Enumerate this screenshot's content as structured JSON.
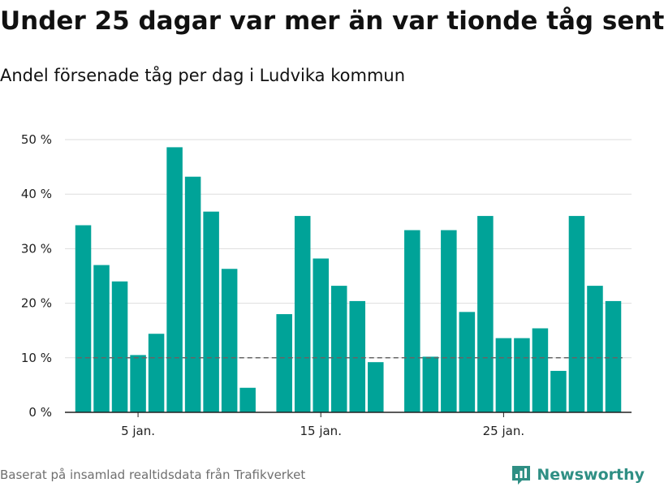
{
  "header": {
    "title": "Under 25 dagar var mer än var tionde tåg sent",
    "subtitle": "Andel försenade tåg per dag i Ludvika kommun"
  },
  "footer": {
    "source": "Baserat på insamlad realtidsdata från Trafikverket",
    "brand": "Newsworthy"
  },
  "colors": {
    "bar": "#00a398",
    "reference_line": "#666666",
    "grid": "#dddddd",
    "brand": "#2f8f84"
  },
  "chart_data": {
    "type": "bar",
    "title": "Under 25 dagar var mer än var tionde tåg sent",
    "subtitle": "Andel försenade tåg per dag i Ludvika kommun",
    "xlabel": "",
    "ylabel": "",
    "x_unit": "day of January",
    "x": [
      2,
      3,
      4,
      5,
      6,
      7,
      8,
      9,
      10,
      11,
      13,
      14,
      15,
      16,
      17,
      18,
      20,
      21,
      22,
      23,
      24,
      25,
      26,
      27,
      28,
      29,
      30,
      31
    ],
    "values": [
      34.3,
      27,
      24,
      10.5,
      14.4,
      48.6,
      43.2,
      36.8,
      26.3,
      4.5,
      18,
      36,
      28.2,
      23.2,
      20.4,
      9.2,
      33.4,
      10.2,
      33.4,
      18.4,
      36,
      13.6,
      13.6,
      15.4,
      7.6,
      36,
      23.2,
      20.4
    ],
    "ylim": [
      0,
      50
    ],
    "yticks": [
      {
        "value": 0,
        "label": "0 %"
      },
      {
        "value": 10,
        "label": "10 %"
      },
      {
        "value": 20,
        "label": "20 %"
      },
      {
        "value": 30,
        "label": "30 %"
      },
      {
        "value": 40,
        "label": "40 %"
      },
      {
        "value": 50,
        "label": "50 %"
      }
    ],
    "xticks": [
      {
        "value": 5,
        "label": "5 jan."
      },
      {
        "value": 15,
        "label": "15 jan."
      },
      {
        "value": 25,
        "label": "25 jan."
      }
    ],
    "reference_line": {
      "value": 10,
      "style": "dashed"
    },
    "grid": true
  }
}
